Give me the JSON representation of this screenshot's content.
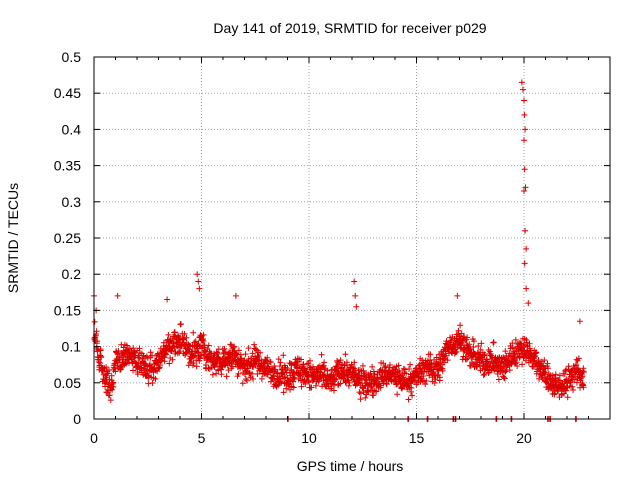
{
  "chart_data": {
    "type": "scatter",
    "title": "Day 141 of 2019, SRMTID for receiver p029",
    "xlabel": "GPS time / hours",
    "ylabel": "SRMTID / TECUs",
    "xlim": [
      0,
      24
    ],
    "ylim": [
      0,
      0.5
    ],
    "xticks": [
      0,
      5,
      10,
      15,
      20
    ],
    "xtick_labels": [
      "0",
      "5",
      "10",
      "15",
      "20"
    ],
    "yticks": [
      0,
      0.05,
      0.1,
      0.15,
      0.2,
      0.25,
      0.3,
      0.35,
      0.4,
      0.45,
      0.5
    ],
    "ytick_labels": [
      "0",
      "0.05",
      "0.1",
      "0.15",
      "0.2",
      "0.25",
      "0.3",
      "0.35",
      "0.4",
      "0.45",
      "0.5"
    ],
    "grid": true,
    "marker": "+",
    "color": "#dd0000",
    "series": [
      {
        "name": "SRMTID",
        "trend": {
          "x": [
            0.0,
            0.2,
            0.5,
            0.8,
            1.0,
            1.5,
            2.0,
            2.5,
            3.0,
            3.5,
            4.0,
            4.5,
            5.0,
            5.5,
            6.0,
            6.5,
            7.0,
            7.5,
            8.0,
            8.5,
            9.0,
            9.5,
            10.0,
            10.5,
            11.0,
            11.5,
            12.0,
            12.5,
            13.0,
            13.5,
            14.0,
            14.5,
            15.0,
            15.5,
            16.0,
            16.5,
            17.0,
            17.5,
            18.0,
            18.5,
            19.0,
            19.5,
            20.0,
            20.5,
            21.0,
            21.3,
            21.6,
            22.0,
            22.5,
            22.8
          ],
          "y": [
            0.12,
            0.09,
            0.06,
            0.04,
            0.08,
            0.09,
            0.08,
            0.07,
            0.08,
            0.1,
            0.11,
            0.09,
            0.1,
            0.08,
            0.08,
            0.09,
            0.07,
            0.08,
            0.07,
            0.06,
            0.06,
            0.07,
            0.06,
            0.06,
            0.05,
            0.07,
            0.06,
            0.05,
            0.05,
            0.06,
            0.06,
            0.05,
            0.06,
            0.07,
            0.07,
            0.1,
            0.11,
            0.09,
            0.08,
            0.08,
            0.07,
            0.09,
            0.1,
            0.08,
            0.06,
            0.05,
            0.045,
            0.05,
            0.07,
            0.05
          ]
        },
        "spikes": [
          {
            "x": 0.0,
            "y": 0.17
          },
          {
            "x": 0.1,
            "y": 0.15
          },
          {
            "x": 1.1,
            "y": 0.17
          },
          {
            "x": 3.4,
            "y": 0.165
          },
          {
            "x": 4.8,
            "y": 0.2
          },
          {
            "x": 4.85,
            "y": 0.19
          },
          {
            "x": 4.9,
            "y": 0.18
          },
          {
            "x": 6.6,
            "y": 0.17
          },
          {
            "x": 12.1,
            "y": 0.19
          },
          {
            "x": 12.15,
            "y": 0.17
          },
          {
            "x": 12.2,
            "y": 0.155
          },
          {
            "x": 16.9,
            "y": 0.17
          },
          {
            "x": 19.9,
            "y": 0.465
          },
          {
            "x": 19.95,
            "y": 0.455
          },
          {
            "x": 20.0,
            "y": 0.44
          },
          {
            "x": 20.02,
            "y": 0.42
          },
          {
            "x": 20.05,
            "y": 0.4
          },
          {
            "x": 20.0,
            "y": 0.385
          },
          {
            "x": 20.03,
            "y": 0.345
          },
          {
            "x": 20.07,
            "y": 0.32
          },
          {
            "x": 20.0,
            "y": 0.315
          },
          {
            "x": 20.05,
            "y": 0.26
          },
          {
            "x": 20.1,
            "y": 0.235
          },
          {
            "x": 20.03,
            "y": 0.215
          },
          {
            "x": 20.1,
            "y": 0.18
          },
          {
            "x": 20.2,
            "y": 0.16
          },
          {
            "x": 22.6,
            "y": 0.135
          }
        ],
        "zeros": [
          9.0,
          14.6,
          15.5,
          16.7,
          16.8,
          18.7,
          19.4,
          21.1,
          21.2,
          22.4
        ]
      }
    ]
  }
}
